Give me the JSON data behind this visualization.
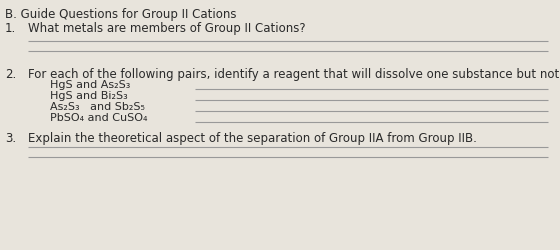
{
  "bg_color": "#e8e4dc",
  "text_color": "#2a2a2a",
  "line_color": "#999999",
  "title": "B. Guide Questions for Group II Cations",
  "q1_num": "1.",
  "q1_text": "What metals are members of Group II Cations?",
  "q2_num": "2.",
  "q2_text": "For each of the following pairs, identify a reagent that will dissolve one substance but not the other:",
  "q2_items": [
    "HgS and As₂S₃",
    "HgS and Bi₂S₃",
    "As₂S₃   and Sb₂S₅",
    "PbSO₄ and CuSO₄"
  ],
  "q3_num": "3.",
  "q3_text": "Explain the theoretical aspect of the separation of Group IIA from Group IIB.",
  "fig_width": 5.6,
  "fig_height": 2.51,
  "dpi": 100,
  "font_size_title": 8.5,
  "font_size_body": 8.5,
  "font_size_item": 8.0
}
